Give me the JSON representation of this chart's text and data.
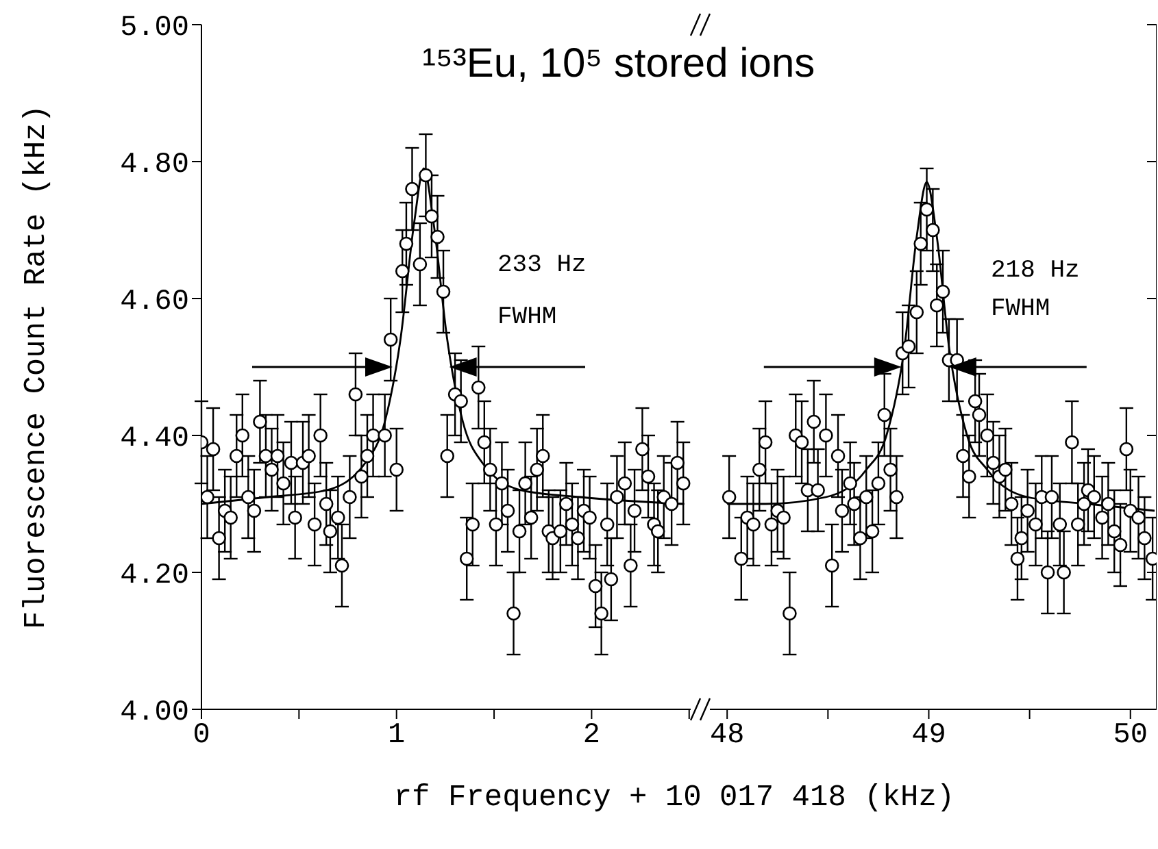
{
  "chart_data": [
    {
      "type": "scatter",
      "title": "¹⁵³Eu, 10⁵ stored ions",
      "xlabel": "rf Frequency + 10 017 418 (kHz)",
      "ylabel": "Fluorescence Count Rate (kHz)",
      "xlim": [
        0,
        2.55
      ],
      "xticks": [
        0,
        {
          "value": 0.5,
          "label": null
        },
        1,
        {
          "value": 1.5,
          "label": null
        },
        2,
        {
          "value": 2.5,
          "label": null
        }
      ],
      "ylim": [
        4,
        5
      ],
      "yticks": [
        {
          "value": 4,
          "label": "4.00"
        },
        {
          "value": 4.2,
          "label": "4.20"
        },
        {
          "value": 4.4,
          "label": "4.40"
        },
        {
          "value": 4.6,
          "label": "4.60"
        },
        {
          "value": 4.8,
          "label": "4.80"
        },
        {
          "value": 5,
          "label": "5.00"
        }
      ],
      "marker": "circle",
      "series": [
        {
          "type": "line",
          "color": "#000000",
          "marker": "none",
          "x": [
            0,
            0.34,
            0.64,
            0.84,
            0.94,
            1.02,
            1.09,
            1.14,
            1.19,
            1.26,
            1.34,
            1.44,
            1.64,
            1.94,
            2.47
          ],
          "values": [
            4.3,
            4.31,
            4.32,
            4.36,
            4.42,
            4.54,
            4.71,
            4.79,
            4.71,
            4.54,
            4.42,
            4.36,
            4.32,
            4.31,
            4.3
          ]
        },
        {
          "color": "#000000",
          "x": [
            0.0,
            0.03,
            0.06,
            0.09,
            0.12,
            0.15,
            0.18,
            0.21,
            0.24,
            0.27,
            0.3,
            0.33,
            0.36,
            0.39,
            0.42,
            0.46,
            0.48,
            0.52,
            0.55,
            0.58,
            0.61,
            0.64,
            0.66,
            0.7,
            0.72,
            0.76,
            0.79,
            0.82,
            0.85,
            0.88,
            0.94,
            0.97,
            1.0,
            1.03,
            1.05,
            1.08,
            1.12,
            1.15,
            1.18,
            1.21,
            1.24,
            1.26,
            1.3,
            1.33,
            1.36,
            1.39,
            1.42,
            1.45,
            1.48,
            1.51,
            1.54,
            1.57,
            1.6,
            1.63,
            1.66,
            1.69,
            1.72,
            1.75,
            1.78,
            1.8,
            1.84,
            1.87,
            1.9,
            1.93,
            1.96,
            1.99,
            2.02,
            2.05,
            2.08,
            2.1,
            2.13,
            2.17,
            2.2,
            2.22,
            2.26,
            2.29,
            2.32,
            2.34,
            2.37,
            2.41,
            2.44,
            2.47
          ],
          "values": [
            4.39,
            4.31,
            4.38,
            4.25,
            4.29,
            4.28,
            4.37,
            4.4,
            4.31,
            4.29,
            4.42,
            4.37,
            4.35,
            4.37,
            4.33,
            4.36,
            4.28,
            4.36,
            4.37,
            4.27,
            4.4,
            4.3,
            4.26,
            4.28,
            4.21,
            4.31,
            4.46,
            4.34,
            4.37,
            4.4,
            4.4,
            4.54,
            4.35,
            4.64,
            4.68,
            4.76,
            4.65,
            4.78,
            4.72,
            4.69,
            4.61,
            4.37,
            4.46,
            4.45,
            4.22,
            4.27,
            4.47,
            4.39,
            4.35,
            4.27,
            4.33,
            4.29,
            4.14,
            4.26,
            4.33,
            4.28,
            4.35,
            4.37,
            4.26,
            4.25,
            4.26,
            4.3,
            4.27,
            4.25,
            4.29,
            4.28,
            4.18,
            4.14,
            4.27,
            4.19,
            4.31,
            4.33,
            4.21,
            4.29,
            4.38,
            4.34,
            4.27,
            4.26,
            4.31,
            4.3,
            4.36,
            4.33
          ],
          "errors": [
            0.06,
            0.06,
            0.06,
            0.06,
            0.06,
            0.06,
            0.06,
            0.06,
            0.06,
            0.06,
            0.06,
            0.06,
            0.06,
            0.06,
            0.06,
            0.06,
            0.06,
            0.06,
            0.06,
            0.06,
            0.06,
            0.06,
            0.06,
            0.06,
            0.06,
            0.06,
            0.06,
            0.06,
            0.06,
            0.06,
            0.06,
            0.06,
            0.06,
            0.06,
            0.06,
            0.06,
            0.06,
            0.06,
            0.06,
            0.06,
            0.06,
            0.06,
            0.06,
            0.06,
            0.06,
            0.06,
            0.06,
            0.06,
            0.06,
            0.06,
            0.06,
            0.06,
            0.06,
            0.06,
            0.06,
            0.06,
            0.06,
            0.06,
            0.06,
            0.06,
            0.06,
            0.06,
            0.06,
            0.06,
            0.06,
            0.06,
            0.06,
            0.06,
            0.06,
            0.06,
            0.06,
            0.06,
            0.06,
            0.06,
            0.06,
            0.06,
            0.06,
            0.06,
            0.06,
            0.06,
            0.06,
            0.06
          ]
        }
      ],
      "annotations": [
        "233 Hz",
        "FWHM"
      ]
    },
    {
      "type": "scatter",
      "xlim": [
        47.86,
        50.13
      ],
      "xticks": [
        48,
        {
          "value": 48.5,
          "label": null
        },
        49,
        {
          "value": 49.5,
          "label": null
        },
        50
      ],
      "ylim": [
        4,
        5
      ],
      "yticks": [
        4,
        4.2,
        4.4,
        4.6,
        4.8,
        5
      ],
      "tick_labels": "x",
      "marker": "circle",
      "series": [
        {
          "type": "line",
          "color": "#000000",
          "marker": "none",
          "x": [
            48.0,
            48.19,
            48.49,
            48.69,
            48.79,
            48.88,
            48.94,
            48.99,
            49.04,
            49.1,
            49.19,
            49.29,
            49.49,
            49.79,
            50.12
          ],
          "values": [
            4.3,
            4.3,
            4.31,
            4.35,
            4.4,
            4.53,
            4.69,
            4.77,
            4.69,
            4.53,
            4.4,
            4.35,
            4.31,
            4.3,
            4.29
          ]
        },
        {
          "color": "#000000",
          "x": [
            48.01,
            48.07,
            48.1,
            48.13,
            48.16,
            48.19,
            48.22,
            48.25,
            48.28,
            48.31,
            48.34,
            48.37,
            48.4,
            48.43,
            48.45,
            48.49,
            48.52,
            48.55,
            48.57,
            48.61,
            48.63,
            48.66,
            48.69,
            48.72,
            48.75,
            48.78,
            48.81,
            48.84,
            48.87,
            48.9,
            48.94,
            48.96,
            48.99,
            49.02,
            49.04,
            49.07,
            49.1,
            49.14,
            49.17,
            49.2,
            49.23,
            49.25,
            49.29,
            49.32,
            49.35,
            49.38,
            49.41,
            49.44,
            49.46,
            49.49,
            49.53,
            49.56,
            49.59,
            49.61,
            49.65,
            49.67,
            49.71,
            49.74,
            49.77,
            49.79,
            49.82,
            49.86,
            49.89,
            49.92,
            49.95,
            49.98,
            50.0,
            50.04,
            50.07,
            50.11
          ],
          "values": [
            4.31,
            4.22,
            4.28,
            4.27,
            4.35,
            4.39,
            4.27,
            4.29,
            4.28,
            4.14,
            4.4,
            4.39,
            4.32,
            4.42,
            4.32,
            4.4,
            4.21,
            4.37,
            4.29,
            4.33,
            4.3,
            4.25,
            4.31,
            4.26,
            4.33,
            4.43,
            4.35,
            4.31,
            4.52,
            4.53,
            4.58,
            4.68,
            4.73,
            4.7,
            4.59,
            4.61,
            4.51,
            4.51,
            4.37,
            4.34,
            4.45,
            4.43,
            4.4,
            4.36,
            4.34,
            4.35,
            4.3,
            4.22,
            4.25,
            4.29,
            4.27,
            4.31,
            4.2,
            4.31,
            4.27,
            4.2,
            4.39,
            4.27,
            4.3,
            4.32,
            4.31,
            4.28,
            4.3,
            4.26,
            4.24,
            4.38,
            4.29,
            4.28,
            4.25,
            4.22
          ],
          "errors": [
            0.06,
            0.06,
            0.06,
            0.06,
            0.06,
            0.06,
            0.06,
            0.06,
            0.06,
            0.06,
            0.06,
            0.06,
            0.06,
            0.06,
            0.06,
            0.06,
            0.06,
            0.06,
            0.06,
            0.06,
            0.06,
            0.06,
            0.06,
            0.06,
            0.06,
            0.06,
            0.06,
            0.06,
            0.06,
            0.06,
            0.06,
            0.06,
            0.06,
            0.06,
            0.06,
            0.06,
            0.06,
            0.06,
            0.06,
            0.06,
            0.06,
            0.06,
            0.06,
            0.06,
            0.06,
            0.06,
            0.06,
            0.06,
            0.06,
            0.06,
            0.06,
            0.06,
            0.06,
            0.06,
            0.06,
            0.06,
            0.06,
            0.06,
            0.06,
            0.06,
            0.06,
            0.06,
            0.06,
            0.06,
            0.06,
            0.06,
            0.06,
            0.06,
            0.06,
            0.06
          ]
        }
      ],
      "annotations": [
        "218 Hz",
        "FWHM"
      ]
    }
  ]
}
